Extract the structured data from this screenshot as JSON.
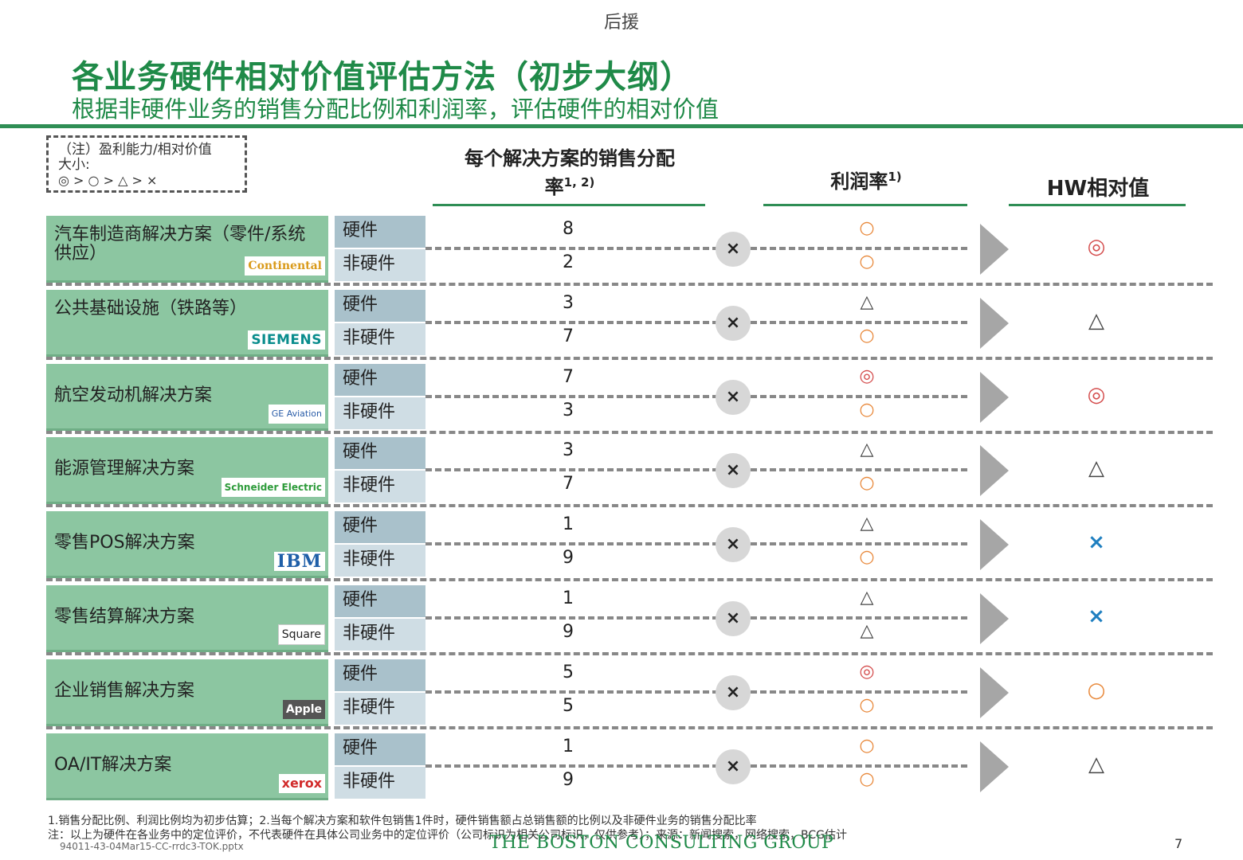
{
  "header": {
    "top_label": "后援",
    "title": "各业务硬件相对价值评估方法（初步大纲）",
    "subtitle": "根据非硬件业务的销售分配比例和利润率，评估硬件的相对价值"
  },
  "note": {
    "line1": "（注）盈利能力/相对价值",
    "line2": "大小:",
    "line3": "◎ > ○ > △ > ×"
  },
  "columns": {
    "sales_line1": "每个解决方案的销售分配",
    "sales_line2": "率",
    "sales_sup": "1, 2)",
    "profit": "利润率",
    "profit_sup": "1)",
    "hw": "HW相对值"
  },
  "labels": {
    "hw": "硬件",
    "non_hw": "非硬件",
    "times": "×"
  },
  "rows": [
    {
      "name": "汽车制造商解决方案（零件/系统供应）",
      "logo": "Continental",
      "hw_ratio": "8",
      "nonhw_ratio": "2",
      "hw_profit": "○",
      "nonhw_profit": "○",
      "hw_value": "◎"
    },
    {
      "name": "公共基础设施（铁路等）",
      "logo": "SIEMENS",
      "hw_ratio": "3",
      "nonhw_ratio": "7",
      "hw_profit": "△",
      "nonhw_profit": "○",
      "hw_value": "△"
    },
    {
      "name": "航空发动机解决方案",
      "logo": "GE Aviation",
      "hw_ratio": "7",
      "nonhw_ratio": "3",
      "hw_profit": "◎",
      "nonhw_profit": "○",
      "hw_value": "◎"
    },
    {
      "name": "能源管理解决方案",
      "logo": "Schneider Electric",
      "hw_ratio": "3",
      "nonhw_ratio": "7",
      "hw_profit": "△",
      "nonhw_profit": "○",
      "hw_value": "△"
    },
    {
      "name": "零售POS解决方案",
      "logo": "IBM",
      "hw_ratio": "1",
      "nonhw_ratio": "9",
      "hw_profit": "△",
      "nonhw_profit": "○",
      "hw_value": "×"
    },
    {
      "name": "零售结算解决方案",
      "logo": "Square",
      "hw_ratio": "1",
      "nonhw_ratio": "9",
      "hw_profit": "△",
      "nonhw_profit": "△",
      "hw_value": "×"
    },
    {
      "name": "企业销售解决方案",
      "logo": "Apple",
      "hw_ratio": "5",
      "nonhw_ratio": "5",
      "hw_profit": "◎",
      "nonhw_profit": "○",
      "hw_value": "○"
    },
    {
      "name": "OA/IT解决方案",
      "logo": "xerox",
      "hw_ratio": "1",
      "nonhw_ratio": "9",
      "hw_profit": "○",
      "nonhw_profit": "○",
      "hw_value": "△"
    }
  ],
  "footer": {
    "note1": "1.销售分配比例、利润比例均为初步估算；2.当每个解决方案和软件包销售1件时，硬件销售额占总销售额的比例以及非硬件业务的销售分配比率",
    "note2": "注：以上为硬件在各业务中的定位评价，不代表硬件在具体公司业务中的定位评价（公司标识为相关公司标识，仅供参考）；来源：新闻搜索，网络搜索，BCG估计",
    "code": "94011-43-04Mar15-CC-rrdc3-TOK.pptx",
    "brand": "THE BOSTON CONSULTING GROUP",
    "page": "7"
  }
}
